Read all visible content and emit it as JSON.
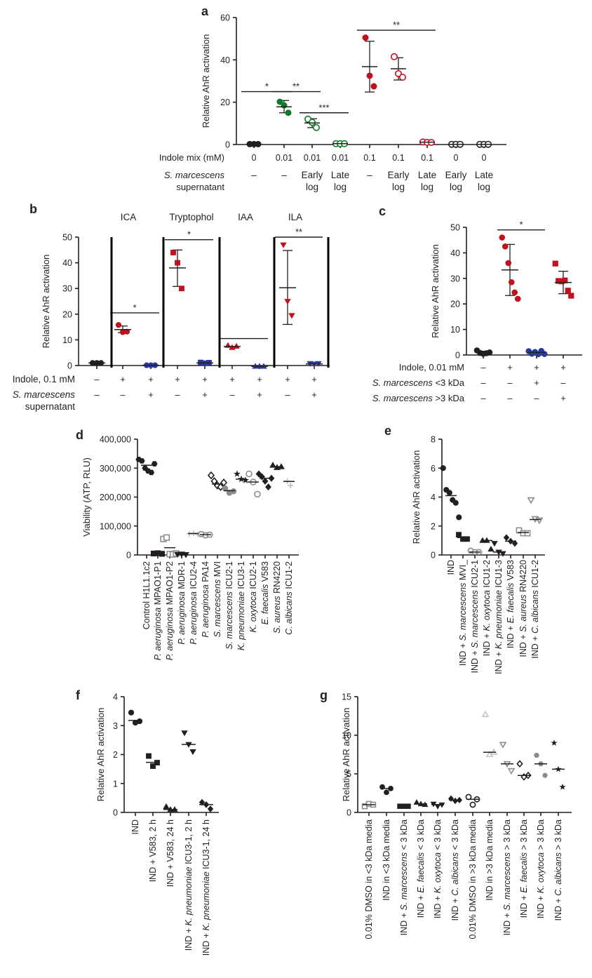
{
  "colors": {
    "black": "#231f20",
    "green": "#0f7a2b",
    "red": "#c0111e",
    "blue": "#2b3a9a",
    "grey": "#8c8c8c",
    "lightgrey": "#c4c4c4"
  },
  "chart_data": [
    {
      "panel": "a",
      "type": "scatter",
      "ylabel": "Relative AhR activation",
      "ylim": [
        0,
        60
      ],
      "yticks": [
        0,
        20,
        40,
        60
      ],
      "row_labels": [
        "Indole mix (mM)",
        "S. marcescens supernatant"
      ],
      "row_label_lines": [
        [
          "Indole mix (mM)"
        ],
        [
          "S. marcescens",
          "supernatant"
        ]
      ],
      "groups": [
        {
          "indole": "0",
          "super": [
            "–"
          ],
          "color": "black",
          "fill": true,
          "points": [
            0.2,
            0.2,
            0.2
          ],
          "mean": 0.2
        },
        {
          "indole": "0.01",
          "super": [
            "–"
          ],
          "color": "green",
          "fill": true,
          "points": [
            20.2,
            18.5,
            15.0
          ],
          "mean": 17.8,
          "err": [
            15.0,
            20.8
          ]
        },
        {
          "indole": "0.01",
          "super": [
            "Early",
            "log"
          ],
          "color": "green",
          "fill": false,
          "points": [
            12.0,
            10.5,
            8.0
          ],
          "mean": 10.2,
          "err": [
            8.0,
            12.2
          ]
        },
        {
          "indole": "0.01",
          "super": [
            "Late",
            "log"
          ],
          "color": "green",
          "fill": false,
          "points": [
            0.4,
            0.4,
            0.4
          ],
          "mean": 0.4
        },
        {
          "indole": "0.1",
          "super": [
            "–"
          ],
          "color": "red",
          "fill": true,
          "points": [
            50.5,
            32.5,
            27.5
          ],
          "mean": 36.8,
          "err": [
            24.8,
            48.8
          ]
        },
        {
          "indole": "0.1",
          "super": [
            "Early",
            "log"
          ],
          "color": "red",
          "fill": false,
          "points": [
            41.5,
            33.5,
            31.8
          ],
          "mean": 35.8,
          "err": [
            30.5,
            41.0
          ]
        },
        {
          "indole": "0.1",
          "super": [
            "Late",
            "log"
          ],
          "color": "red",
          "fill": false,
          "points": [
            1.2,
            1.0,
            1.0
          ],
          "mean": 1.1
        },
        {
          "indole": "0",
          "super": [
            "Early",
            "log"
          ],
          "color": "black",
          "fill": false,
          "points": [
            0.1,
            0.1,
            0.1
          ],
          "mean": 0.1
        },
        {
          "indole": "0",
          "super": [
            "Late",
            "log"
          ],
          "color": "black",
          "fill": false,
          "points": [
            0.1,
            0.1,
            0.1
          ],
          "mean": 0.1
        }
      ],
      "significance": [
        {
          "from": 0,
          "to": 1,
          "y": 25,
          "label": "*"
        },
        {
          "from": 1,
          "to": 2,
          "y": 25,
          "label": "**"
        },
        {
          "from": 2,
          "to": 3,
          "y": 15,
          "label": "***"
        },
        {
          "from": 4,
          "to": 6,
          "y": 54,
          "label": "**"
        }
      ]
    },
    {
      "panel": "b",
      "type": "scatter",
      "ylabel": "Relative AhR activation",
      "ylim": [
        0,
        50
      ],
      "yticks": [
        0,
        10,
        20,
        30,
        40,
        50
      ],
      "section_titles": [
        "ICA",
        "Tryptophol",
        "IAA",
        "ILA"
      ],
      "row_label_lines": [
        [
          "Indole, 0.1 mM"
        ],
        [
          "S. marcescens",
          "supernatant"
        ]
      ],
      "groups": [
        {
          "indole": "–",
          "super": "–",
          "color": "black",
          "marker": "circle",
          "points": [
            1.0,
            1.0,
            1.0
          ],
          "mean": 1.0
        },
        {
          "indole": "+",
          "super": "–",
          "color": "red",
          "marker": "circle",
          "points": [
            15.8,
            13.0,
            13.2
          ],
          "mean": 14.0,
          "err": [
            12.8,
            15.4
          ]
        },
        {
          "indole": "+",
          "super": "+",
          "color": "blue",
          "marker": "circle",
          "points": [
            0.1,
            0.1,
            0.1
          ],
          "mean": 0.1
        },
        {
          "indole": "+",
          "super": "–",
          "color": "red",
          "marker": "square",
          "points": [
            44.0,
            40.0,
            30.0
          ],
          "mean": 38.0,
          "err": [
            30.8,
            45.0
          ]
        },
        {
          "indole": "+",
          "super": "+",
          "color": "blue",
          "marker": "square",
          "points": [
            1.2,
            0.9,
            1.1
          ],
          "mean": 1.0
        },
        {
          "indole": "+",
          "super": "–",
          "color": "red",
          "marker": "triangle-up",
          "points": [
            7.8,
            7.0,
            7.5
          ],
          "mean": 7.4
        },
        {
          "indole": "+",
          "super": "+",
          "color": "blue",
          "marker": "triangle-up",
          "points": [
            -0.3,
            -0.3,
            -0.3
          ],
          "mean": -0.3
        },
        {
          "indole": "+",
          "super": "–",
          "color": "red",
          "marker": "triangle-down",
          "points": [
            47.0,
            25.0,
            19.5
          ],
          "mean": 30.3,
          "err": [
            16.0,
            44.8
          ]
        },
        {
          "indole": "+",
          "super": "+",
          "color": "blue",
          "marker": "triangle-down",
          "points": [
            0.8,
            0.6,
            0.8
          ],
          "mean": 0.6
        }
      ],
      "significance": [
        {
          "from": 1,
          "to": 2,
          "y": 20.5,
          "label": "*"
        },
        {
          "from": 3,
          "to": 4,
          "y": 49,
          "label": "*"
        },
        {
          "from": 5,
          "to": 6,
          "y": 10.5,
          "label": ""
        },
        {
          "from": 7,
          "to": 8,
          "y": 50,
          "label": "**"
        }
      ]
    },
    {
      "panel": "c",
      "type": "scatter",
      "ylabel": "Relative AhR activation",
      "ylim": [
        0,
        50
      ],
      "yticks": [
        0,
        10,
        20,
        30,
        40,
        50
      ],
      "row_label_lines": [
        [
          "Indole, 0.01 mM"
        ],
        [
          "S. marcescens <3 kDa"
        ],
        [
          "S. marcescens >3 kDa"
        ]
      ],
      "rows": [
        [
          "–",
          "+",
          "+",
          "+"
        ],
        [
          "–",
          "–",
          "+",
          "–"
        ],
        [
          "–",
          "–",
          "–",
          "+"
        ]
      ],
      "groups": [
        {
          "color": "black",
          "marker": "circle",
          "points": [
            1.8,
            0.8,
            0.5,
            0.7,
            1.0
          ],
          "mean": 1.0
        },
        {
          "color": "red",
          "marker": "circle",
          "points": [
            46.0,
            42.5,
            36.0,
            28.5,
            24.5,
            22.0
          ],
          "mean": 33.3,
          "err": [
            23.3,
            43.3
          ]
        },
        {
          "color": "blue",
          "marker": "circle",
          "points": [
            1.5,
            0.5,
            1.2,
            0.3,
            1.6,
            0.4
          ],
          "mean": 1.0
        },
        {
          "color": "red",
          "marker": "square",
          "points": [
            35.8,
            29.0,
            28.8,
            29.2,
            25.2,
            23.2
          ],
          "mean": 28.4,
          "err": [
            24.0,
            32.8
          ]
        }
      ],
      "significance": [
        {
          "from": 1,
          "to": 2,
          "y": 49,
          "label": "*"
        }
      ]
    },
    {
      "panel": "d",
      "type": "scatter",
      "ylabel": "Viability (ATP, RLU)",
      "ylim": [
        0,
        400000
      ],
      "yticks": [
        0,
        100000,
        200000,
        300000,
        400000
      ],
      "ytick_labels": [
        "0",
        "100,000",
        "200,000",
        "300,000",
        "400,000"
      ],
      "categories": [
        "Control H1L1.1c2",
        "P. aeruginosa MPAO1-P1",
        "P. aeruginosa MPAO1-P2",
        "P. aeruginosa MDR-1",
        "P. aeruginosa ICU2-4",
        "P. aeruginosa PA14",
        "S. marcescens MVI",
        "S. marcescens ICU2-1",
        "K. pneumoniae ICU3-1",
        "K. oxytoca ICU2-1",
        "E. faecalis V583",
        "S. aureus RN4220",
        "C. albicans ICU1-2"
      ],
      "groups": [
        {
          "color": "black",
          "marker": "hexagon",
          "fill": true,
          "points": [
            330000,
            325000,
            300000,
            290000,
            285000,
            315000
          ],
          "mean": 310000
        },
        {
          "color": "black",
          "marker": "square",
          "fill": true,
          "points": [
            5000,
            6000,
            4000
          ],
          "mean": 5000
        },
        {
          "color": "grey",
          "marker": "square-open",
          "fill": false,
          "points": [
            55000,
            60000,
            3000,
            2000,
            5000
          ],
          "mean": 25000
        },
        {
          "color": "black",
          "marker": "triangle-down",
          "fill": true,
          "points": [
            2000,
            3000,
            1000
          ],
          "mean": 2000
        },
        {
          "color": "lightgrey",
          "marker": "cross",
          "fill": false,
          "points": [
            73000,
            75000,
            71000
          ],
          "mean": 74000
        },
        {
          "color": "grey",
          "marker": "hexagon-open",
          "fill": false,
          "points": [
            72000,
            68000,
            70000
          ],
          "mean": 70000
        },
        {
          "color": "black",
          "marker": "diamond-open",
          "fill": false,
          "points": [
            275000,
            255000,
            240000,
            235000,
            250000
          ],
          "mean": 245000
        },
        {
          "color": "grey",
          "marker": "circle",
          "fill": true,
          "points": [
            230000,
            215000,
            220000
          ],
          "mean": 222000
        },
        {
          "color": "black",
          "marker": "star",
          "fill": true,
          "points": [
            280000,
            262000,
            258000
          ],
          "mean": 262000
        },
        {
          "color": "grey",
          "marker": "circle-open",
          "fill": false,
          "points": [
            280000,
            252000,
            210000
          ],
          "mean": 252000
        },
        {
          "color": "black",
          "marker": "diamond",
          "fill": true,
          "points": [
            280000,
            270000,
            255000,
            235000,
            265000
          ],
          "mean": 265000
        },
        {
          "color": "black",
          "marker": "triangle-up",
          "fill": true,
          "points": [
            310000,
            302000,
            305000
          ],
          "mean": 305000
        },
        {
          "color": "lightgrey",
          "marker": "cross",
          "fill": false,
          "points": [
            255000,
            240000
          ],
          "mean": 254000
        }
      ]
    },
    {
      "panel": "e",
      "type": "scatter",
      "ylabel": "Relative AhR activation",
      "ylim": [
        0,
        8
      ],
      "yticks": [
        0,
        2,
        4,
        6,
        8
      ],
      "categories": [
        "IND",
        "IND + S. marcescens MVI_",
        "IND + S. marcescens ICU2-1",
        "IND + K. oxytoca ICU1-2",
        "IND + K. pneumoniae ICU1-3",
        "IND + E. faecalis V583",
        "IND + S. aureus RN4220",
        "IND + C. albicans ICU1-2"
      ],
      "groups": [
        {
          "color": "black",
          "marker": "circle",
          "fill": true,
          "points": [
            6.0,
            4.5,
            4.3,
            3.8,
            3.6,
            2.6
          ],
          "mean": 4.1
        },
        {
          "color": "black",
          "marker": "square",
          "fill": true,
          "points": [
            1.4,
            1.1,
            1.1
          ],
          "mean": 1.2
        },
        {
          "color": "grey",
          "marker": "hexagon-open",
          "fill": false,
          "points": [
            0.3,
            0.2,
            0.2
          ],
          "mean": 0.2
        },
        {
          "color": "black",
          "marker": "triangle-up",
          "fill": true,
          "points": [
            1.0,
            1.0,
            0.4
          ],
          "mean": 1.0
        },
        {
          "color": "black",
          "marker": "triangle-down",
          "fill": true,
          "points": [
            0.8,
            0.2,
            0.1
          ],
          "mean": 0.2
        },
        {
          "color": "black",
          "marker": "diamond",
          "fill": true,
          "points": [
            1.2,
            0.95,
            0.8
          ],
          "mean": 0.95
        },
        {
          "color": "grey",
          "marker": "square-open",
          "fill": false,
          "points": [
            1.7,
            1.5,
            1.5
          ],
          "mean": 1.55
        },
        {
          "color": "grey",
          "marker": "triangle-down-open",
          "fill": false,
          "points": [
            3.8,
            2.5,
            2.4
          ],
          "mean": 2.45
        }
      ]
    },
    {
      "panel": "f",
      "type": "scatter",
      "ylabel": "Relative AhR activation",
      "ylim": [
        0,
        4
      ],
      "yticks": [
        0,
        1,
        2,
        3,
        4
      ],
      "categories": [
        "IND",
        "IND + V583, 2 h",
        "IND + V583, 24 h",
        "IND + K. pneumoniae ICU3-1, 2 h",
        "IND + K. pneumoniae ICU3-1, 24 h"
      ],
      "groups": [
        {
          "color": "black",
          "marker": "circle",
          "points": [
            3.45,
            3.1,
            3.15
          ],
          "mean": 3.18
        },
        {
          "color": "black",
          "marker": "square",
          "points": [
            1.95,
            1.6,
            1.72
          ],
          "mean": 1.73
        },
        {
          "color": "black",
          "marker": "triangle-up",
          "points": [
            0.2,
            0.1,
            0.1
          ],
          "mean": 0.1
        },
        {
          "color": "black",
          "marker": "triangle-down",
          "points": [
            2.75,
            2.35,
            2.1
          ],
          "mean": 2.35
        },
        {
          "color": "black",
          "marker": "diamond",
          "points": [
            0.35,
            0.27,
            0.12
          ],
          "mean": 0.27
        }
      ]
    },
    {
      "panel": "g",
      "type": "scatter",
      "ylabel": "Relative AhR activation",
      "ylim": [
        0,
        15
      ],
      "yticks": [
        0,
        5,
        10,
        15
      ],
      "categories": [
        "0.01% DMSO in <3 kDa media",
        "IND in <3 kDa media",
        "IND + S. marcescens < 3 kDa",
        "IND + E. faecalis < 3 kDa",
        "IND + K. oxytoca < 3 kDa",
        "IND + C. albicans < 3 kDa",
        "0.01% DMSO in >3 kDa media",
        "IND in >3 kDa media",
        "IND + S. marcescens > 3 kDa",
        "IND + E. faecalis > 3 kDa",
        "IND + K. oxytoca > 3 kDa",
        "IND + C. albicans > 3 kDa"
      ],
      "groups": [
        {
          "color": "grey",
          "marker": "square-open",
          "points": [
            0.8,
            1.1,
            1.0
          ],
          "mean": 1.0
        },
        {
          "color": "black",
          "marker": "circle",
          "points": [
            3.3,
            2.6,
            3.1
          ],
          "mean": 3.1
        },
        {
          "color": "black",
          "marker": "square",
          "points": [
            0.8,
            0.8,
            0.8
          ],
          "mean": 0.8
        },
        {
          "color": "black",
          "marker": "triangle-up",
          "points": [
            1.3,
            1.1,
            1.0
          ],
          "mean": 1.1
        },
        {
          "color": "black",
          "marker": "triangle-down",
          "points": [
            1.1,
            0.8,
            1.0
          ],
          "mean": 1.0
        },
        {
          "color": "black",
          "marker": "diamond",
          "points": [
            1.8,
            1.5,
            1.6
          ],
          "mean": 1.6
        },
        {
          "color": "black",
          "marker": "circle-open",
          "points": [
            2.0,
            1.0,
            1.7
          ],
          "mean": 1.7
        },
        {
          "color": "lightgrey",
          "marker": "triangle-up-open",
          "points": [
            12.7,
            7.5,
            7.8
          ],
          "mean": 7.8
        },
        {
          "color": "grey",
          "marker": "triangle-down-open",
          "points": [
            8.8,
            6.3,
            5.4
          ],
          "mean": 6.3
        },
        {
          "color": "black",
          "marker": "diamond-open",
          "points": [
            6.3,
            4.6,
            4.8
          ],
          "mean": 4.8
        },
        {
          "color": "grey",
          "marker": "hexagon",
          "points": [
            7.4,
            6.3,
            4.8
          ],
          "mean": 6.3
        },
        {
          "color": "black",
          "marker": "star",
          "points": [
            9.0,
            5.6,
            3.3
          ],
          "mean": 5.6
        }
      ]
    }
  ]
}
